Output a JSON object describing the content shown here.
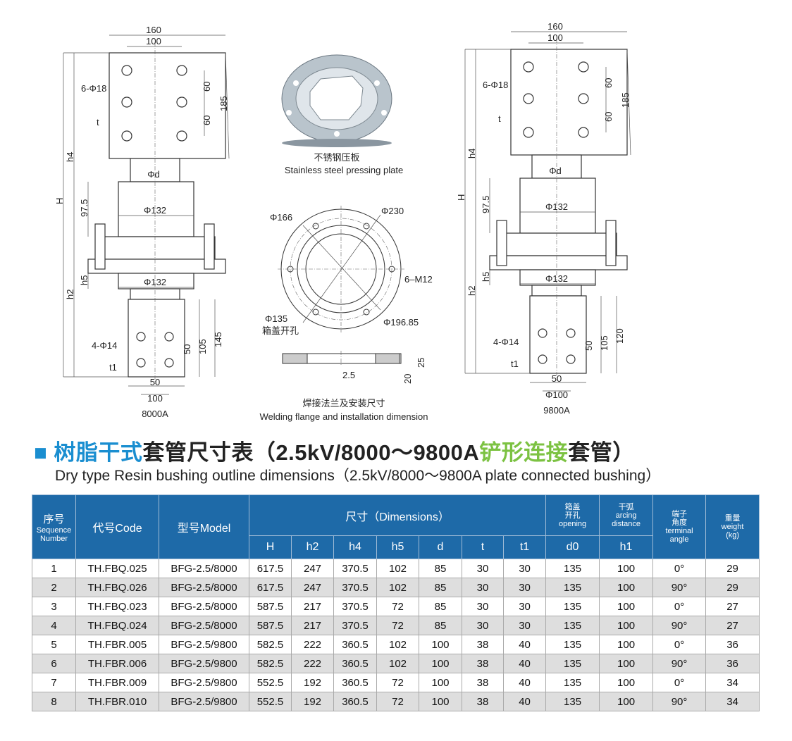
{
  "drawings": {
    "left": {
      "w160": "160",
      "w100": "100",
      "holes": "6-Φ18",
      "p60a": "60",
      "p60b": "60",
      "h185": "185",
      "t": "t",
      "h4": "h4",
      "H": "H",
      "phid": "Φd",
      "h975": "97.5",
      "phi132a": "Φ132",
      "h5": "h5",
      "phi132b": "Φ132",
      "h2": "h2",
      "holes2": "4-Φ14",
      "b50v": "50",
      "b105": "105",
      "bh": "145",
      "t1": "t1",
      "b50": "50",
      "bw": "100",
      "caption": "8000A"
    },
    "right": {
      "w160": "160",
      "w100": "100",
      "holes": "6-Φ18",
      "p60a": "60",
      "p60b": "60",
      "h185": "185",
      "t": "t",
      "h4": "h4",
      "H": "H",
      "phid": "Φd",
      "h975": "97.5",
      "phi132a": "Φ132",
      "h5": "h5",
      "phi132b": "Φ132",
      "h2": "h2",
      "holes2": "4-Φ14",
      "b50v": "50",
      "b105": "105",
      "bh": "120",
      "t1": "t1",
      "b50": "50",
      "bw": "Φ100",
      "caption": "9800A"
    },
    "plate": {
      "caption_cn": "不锈钢压板",
      "caption_en": "Stainless steel pressing plate"
    },
    "flange": {
      "phi166": "Φ166",
      "phi230": "Φ230",
      "m12": "6–M12",
      "phi135": "Φ135",
      "opening_cn": "箱盖开孔",
      "phi19685": "Φ196.85",
      "d25": "2.5",
      "d25b": "25",
      "d20": "20",
      "caption_cn": "焊接法兰及安装尺寸",
      "caption_en": "Welding flange and installation dimension"
    }
  },
  "title": {
    "cn_part1": "树脂干式",
    "cn_part2": "套管尺寸表（2.5kV/8000～9800A",
    "cn_part3": "铲形连接",
    "cn_part4": "套管）",
    "en": "Dry type Resin bushing outline dimensions（2.5kV/8000～9800A plate connected bushing）",
    "accent_blue": "#1a8ed0",
    "accent_green": "#7cc242"
  },
  "table": {
    "header_color": "#1e6aa8",
    "seq_cn": "序号",
    "seq_en1": "Sequence",
    "seq_en2": "Number",
    "code": "代号Code",
    "model": "型号Model",
    "dimensions": "尺寸（Dimensions）",
    "opening_cn1": "箱盖",
    "opening_cn2": "开孔",
    "opening_en": "opening",
    "arcing_cn": "干弧",
    "arcing_en1": "arcing",
    "arcing_en2": "distance",
    "angle_cn1": "端子",
    "angle_cn2": "角度",
    "angle_en1": "terminal",
    "angle_en2": "angle",
    "weight_cn": "重量",
    "weight_en": "weight",
    "weight_unit": "(kg)",
    "sub": [
      "H",
      "h2",
      "h4",
      "h5",
      "d",
      "t",
      "t1",
      "d0",
      "h1"
    ],
    "rows": [
      [
        "1",
        "TH.FBQ.025",
        "BFG-2.5/8000",
        "617.5",
        "247",
        "370.5",
        "102",
        "85",
        "30",
        "30",
        "135",
        "100",
        "0°",
        "29"
      ],
      [
        "2",
        "TH.FBQ.026",
        "BFG-2.5/8000",
        "617.5",
        "247",
        "370.5",
        "102",
        "85",
        "30",
        "30",
        "135",
        "100",
        "90°",
        "29"
      ],
      [
        "3",
        "TH.FBQ.023",
        "BFG-2.5/8000",
        "587.5",
        "217",
        "370.5",
        "72",
        "85",
        "30",
        "30",
        "135",
        "100",
        "0°",
        "27"
      ],
      [
        "4",
        "TH.FBQ.024",
        "BFG-2.5/8000",
        "587.5",
        "217",
        "370.5",
        "72",
        "85",
        "30",
        "30",
        "135",
        "100",
        "90°",
        "27"
      ],
      [
        "5",
        "TH.FBR.005",
        "BFG-2.5/9800",
        "582.5",
        "222",
        "360.5",
        "102",
        "100",
        "38",
        "40",
        "135",
        "100",
        "0°",
        "36"
      ],
      [
        "6",
        "TH.FBR.006",
        "BFG-2.5/9800",
        "582.5",
        "222",
        "360.5",
        "102",
        "100",
        "38",
        "40",
        "135",
        "100",
        "90°",
        "36"
      ],
      [
        "7",
        "TH.FBR.009",
        "BFG-2.5/9800",
        "552.5",
        "192",
        "360.5",
        "72",
        "100",
        "38",
        "40",
        "135",
        "100",
        "0°",
        "34"
      ],
      [
        "8",
        "TH.FBR.010",
        "BFG-2.5/9800",
        "552.5",
        "192",
        "360.5",
        "72",
        "100",
        "38",
        "40",
        "135",
        "100",
        "90°",
        "34"
      ]
    ]
  }
}
